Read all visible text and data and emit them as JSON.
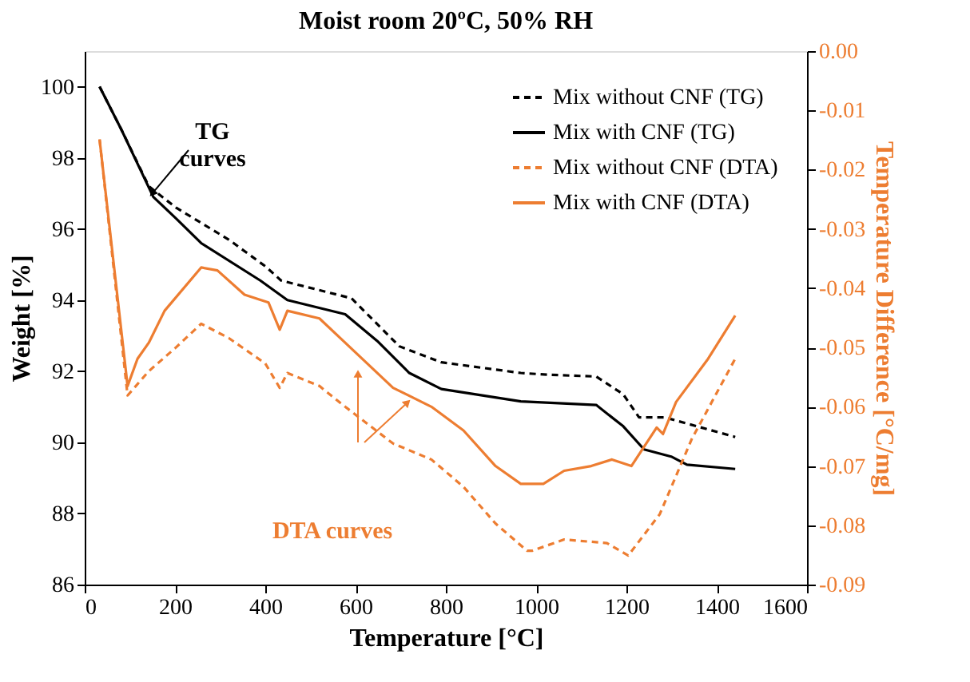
{
  "chart_data": {
    "type": "line",
    "title": "Moist room 20ºC, 50% RH",
    "xlabel": "Temperature [°C]",
    "ylabel": "Weight [%]",
    "y2label": "Temperature Difference [°C/mg]",
    "xlim": [
      0,
      1600
    ],
    "xticks": [
      0,
      200,
      400,
      600,
      800,
      {
        "value": 1000,
        "label": "1000"
      },
      {
        "value": 1200,
        "label": "1200"
      },
      {
        "value": 1400,
        "label": "1400"
      },
      {
        "value": 1600,
        "label": "1600"
      }
    ],
    "ylim": [
      86,
      101
    ],
    "yticks": [
      86,
      88,
      90,
      92,
      94,
      96,
      98,
      100
    ],
    "y2lim": [
      -0.09,
      0
    ],
    "y2ticks": [
      {
        "value": -0.09,
        "label": "-0.09"
      },
      {
        "value": -0.08,
        "label": "-0.08"
      },
      {
        "value": -0.07,
        "label": "-0.07"
      },
      {
        "value": -0.06,
        "label": "-0.06"
      },
      {
        "value": -0.05,
        "label": "-0.05"
      },
      {
        "value": -0.04,
        "label": "-0.04"
      },
      {
        "value": -0.03,
        "label": "-0.03"
      },
      {
        "value": -0.02,
        "label": "-0.02"
      },
      {
        "value": -0.01,
        "label": "-0.01"
      },
      {
        "value": 0,
        "label": "0.00"
      }
    ],
    "grid": false,
    "legend": "top right",
    "marker": "none",
    "annotations": [
      {
        "text": "TG\ncurves",
        "x": 150,
        "y": 97.0
      },
      "DTA curves"
    ],
    "series": [
      {
        "name": "Mix without CNF (TG)",
        "color": "#000000",
        "line_style": "dashed",
        "x": [
          33,
          81,
          142,
          202,
          319,
          400,
          435,
          591,
          697,
          790,
          966,
          1027,
          1133,
          1193,
          1228,
          1285,
          1441
        ],
        "values": [
          100,
          98.8,
          97.2,
          96.6,
          95.7,
          94.95,
          94.55,
          94.05,
          92.7,
          92.25,
          91.95,
          91.9,
          91.85,
          91.35,
          90.7,
          90.7,
          90.15
        ]
      },
      {
        "name": "Mix with CNF (TG)",
        "color": "#000000",
        "line_style": "solid",
        "x": [
          33,
          81,
          152,
          202,
          258,
          389,
          449,
          577,
          648,
          719,
          790,
          966,
          1133,
          1193,
          1239,
          1299,
          1334,
          1441
        ],
        "values": [
          100,
          98.8,
          96.9,
          96.3,
          95.6,
          94.55,
          94.0,
          93.6,
          92.85,
          91.95,
          91.5,
          91.15,
          91.05,
          90.45,
          89.8,
          89.6,
          89.37,
          89.25
        ]
      },
      {
        "name": "Mix without CNF (DTA)",
        "color": "#ed7d31",
        "line_style": "dashed",
        "axis": "y2",
        "x": [
          33,
          95,
          142,
          202,
          258,
          319,
          400,
          432,
          449,
          520,
          577,
          683,
          768,
          839,
          910,
          980,
          991,
          1062,
          1157,
          1204,
          1274,
          1345,
          1441
        ],
        "values": [
          -0.0149,
          -0.0581,
          -0.054,
          -0.05,
          -0.046,
          -0.0484,
          -0.0527,
          -0.0568,
          -0.0543,
          -0.0565,
          -0.06,
          -0.0662,
          -0.0689,
          -0.0735,
          -0.0797,
          -0.0843,
          -0.0843,
          -0.0824,
          -0.083,
          -0.0851,
          -0.0781,
          -0.0654,
          -0.0519
        ]
      },
      {
        "name": "Mix with CNF (DTA)",
        "color": "#ed7d31",
        "line_style": "solid",
        "axis": "y2",
        "x": [
          33,
          95,
          117,
          142,
          177,
          258,
          294,
          354,
          407,
          432,
          449,
          520,
          577,
          683,
          768,
          839,
          910,
          966,
          1016,
          1062,
          1122,
          1168,
          1211,
          1267,
          1281,
          1310,
          1381,
          1441
        ],
        "values": [
          -0.0149,
          -0.0565,
          -0.0519,
          -0.0492,
          -0.0438,
          -0.0365,
          -0.037,
          -0.0411,
          -0.0424,
          -0.047,
          -0.0438,
          -0.0451,
          -0.0492,
          -0.0568,
          -0.06,
          -0.064,
          -0.07,
          -0.073,
          -0.073,
          -0.0708,
          -0.07,
          -0.0689,
          -0.07,
          -0.0635,
          -0.0646,
          -0.0592,
          -0.0519,
          -0.0446
        ]
      }
    ]
  }
}
